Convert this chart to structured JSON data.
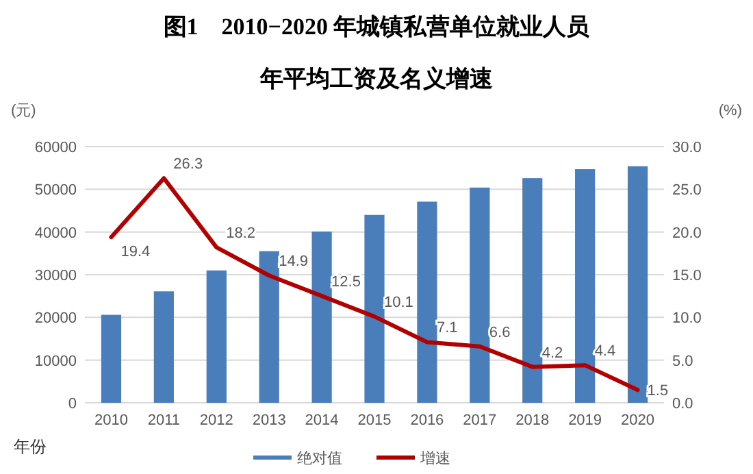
{
  "chart_data": {
    "type": "bar",
    "title": "图1　2010−2020 年城镇私营单位就业人员",
    "subtitle": "年平均工资及名义增速",
    "xlabel": "年份",
    "ylabel": "(元)",
    "y2label": "(%)",
    "categories": [
      "2010",
      "2011",
      "2012",
      "2013",
      "2014",
      "2015",
      "2016",
      "2017",
      "2018",
      "2019",
      "2020"
    ],
    "series": [
      {
        "name": "绝对值",
        "color": "#4a7ebb",
        "values": [
          20600,
          26100,
          31000,
          35500,
          40100,
          44000,
          47100,
          50400,
          52600,
          54700,
          55400
        ]
      },
      {
        "name": "增速",
        "type": "line",
        "axis": "y2",
        "color": "#b00000",
        "values": [
          19.4,
          26.3,
          18.2,
          14.9,
          12.5,
          10.1,
          7.1,
          6.6,
          4.2,
          4.4,
          1.5
        ],
        "value_labels": [
          "19.4",
          "26.3",
          "18.2",
          "14.9",
          "12.5",
          "10.1",
          "7.1",
          "6.6",
          "4.2",
          "4.4",
          "1.5"
        ]
      }
    ],
    "ylim": [
      0,
      60000
    ],
    "yticks": [
      0,
      10000,
      20000,
      30000,
      40000,
      50000,
      60000
    ],
    "y2lim": [
      0,
      30
    ],
    "y2ticks": [
      {
        "value": 0,
        "label": "0.0"
      },
      {
        "value": 5,
        "label": "5.0"
      },
      {
        "value": 10,
        "label": "10.0"
      },
      {
        "value": 15,
        "label": "15.0"
      },
      {
        "value": 20,
        "label": "20.0"
      },
      {
        "value": 25,
        "label": "25.0"
      },
      {
        "value": 30,
        "label": "30.0"
      }
    ],
    "grid": "y",
    "legend": "bottom"
  }
}
